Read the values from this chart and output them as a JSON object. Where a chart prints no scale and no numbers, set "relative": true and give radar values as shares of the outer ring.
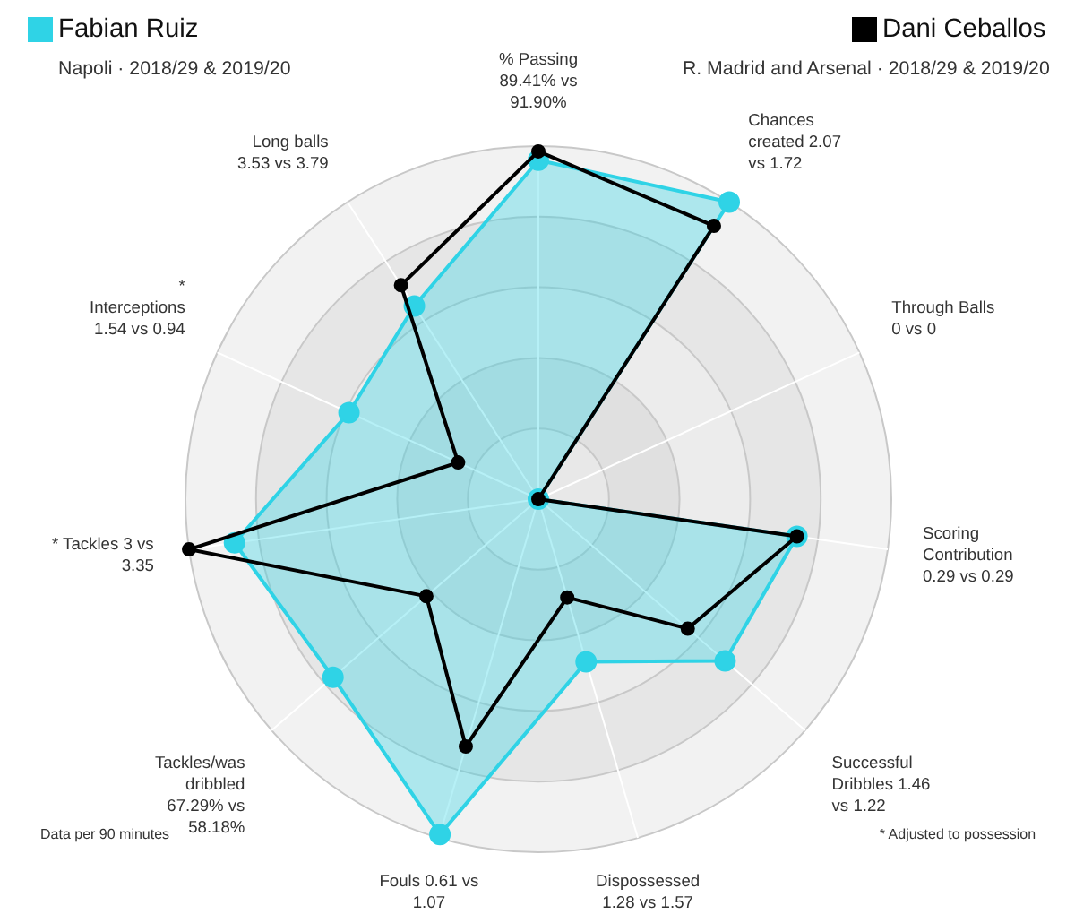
{
  "chart_data": {
    "type": "radar",
    "relative": true,
    "grid": true,
    "legend": "top",
    "marker": "circle",
    "categories": [
      "% Passing 89.41% vs 91.90%",
      "Chances created 2.07 vs 1.72",
      "Through Balls 0 vs 0",
      "Scoring Contribution 0.29 vs 0.29",
      "Successful Dribbles 1.46 vs 1.22",
      "Dispossessed 1.28 vs 1.57",
      "Fouls 0.61 vs 1.07",
      "Tackles/was dribbled 67.29% vs 58.18%",
      "* Tackles 3 vs 3.35",
      "* Interceptions 1.54 vs 0.94",
      "Long balls 3.53 vs 3.79"
    ],
    "series": [
      {
        "name": "Fabian Ruiz",
        "color": "#2fd3e6",
        "values": [
          0.96,
          1.0,
          0,
          0.74,
          0.7,
          0.48,
          0.99,
          0.77,
          0.87,
          0.59,
          0.65
        ]
      },
      {
        "name": "Dani Ceballos",
        "color": "#000000",
        "values": [
          0.985,
          0.92,
          0,
          0.74,
          0.56,
          0.29,
          0.73,
          0.42,
          1.0,
          0.25,
          0.72
        ]
      }
    ],
    "annotations": [
      "Napoli · 2018/29 & 2019/20",
      "R. Madrid and Arsenal · 2018/29 & 2019/20",
      "Data per 90 minutes",
      "* Adjusted to possession"
    ]
  }
}
